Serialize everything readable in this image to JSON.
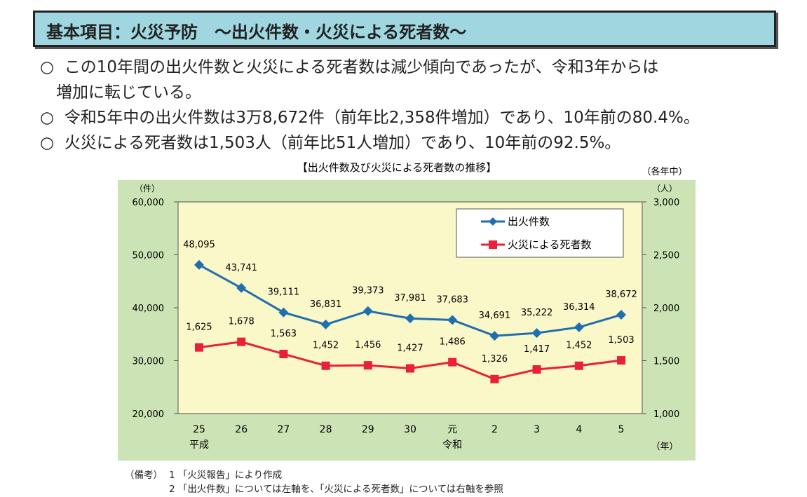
{
  "header": {
    "title": "基本項目：火災予防　～出火件数・火災による死者数～"
  },
  "bullets": [
    {
      "mark": "○",
      "text": "この10年間の出火件数と火災による死者数は減少傾向であったが、令和3年からは"
    },
    {
      "mark": "",
      "text": "増加に転じている。"
    },
    {
      "mark": "○",
      "text": "令和5年中の出火件数は3万8,672件（前年比2,358件増加）であり、10年前の80.4%。"
    },
    {
      "mark": "○",
      "text": "火災による死者数は1,503人（前年比51人増加）であり、10年前の92.5%。"
    }
  ],
  "chart_data": {
    "type": "line",
    "title": "【出火件数及び火災による死者数の推移】",
    "subtitle": "（各年中）",
    "categories": [
      "25",
      "26",
      "27",
      "28",
      "29",
      "30",
      "元",
      "2",
      "3",
      "4",
      "5"
    ],
    "era_labels": {
      "平成": "25",
      "令和": "元"
    },
    "xlabel": "（年）",
    "ylabel_left": "（件）",
    "ylabel_right": "（人）",
    "ylim_left": [
      20000,
      60000
    ],
    "ylim_right": [
      1000,
      3000
    ],
    "yticks_left": [
      "20,000",
      "30,000",
      "40,000",
      "50,000",
      "60,000"
    ],
    "yticks_right": [
      "1,000",
      "1,500",
      "2,000",
      "2,500",
      "3,000"
    ],
    "legend_position": "top-right",
    "series": [
      {
        "name": "出火件数",
        "axis": "left",
        "color": "#1f6fae",
        "marker": "diamond",
        "values": [
          48095,
          43741,
          39111,
          36831,
          39373,
          37981,
          37683,
          34691,
          35222,
          36314,
          38672
        ],
        "labels": [
          "48,095",
          "43,741",
          "39,111",
          "36,831",
          "39,373",
          "37,981",
          "37,683",
          "34,691",
          "35,222",
          "36,314",
          "38,672"
        ]
      },
      {
        "name": "火災による死者数",
        "axis": "right",
        "color": "#e8203a",
        "marker": "square",
        "values": [
          1625,
          1678,
          1563,
          1452,
          1456,
          1427,
          1486,
          1326,
          1417,
          1452,
          1503
        ],
        "labels": [
          "1,625",
          "1,678",
          "1,563",
          "1,452",
          "1,456",
          "1,427",
          "1,486",
          "1,326",
          "1,417",
          "1,452",
          "1,503"
        ]
      }
    ],
    "colors": {
      "outer_bg": "#cce3b5",
      "plot_bg": "#faf7c8"
    }
  },
  "notes": {
    "label": "（備考）",
    "items": [
      "1 「火災報告」により作成",
      "2 「出火件数」については左軸を、「火災による死者数」については右軸を参照"
    ]
  }
}
